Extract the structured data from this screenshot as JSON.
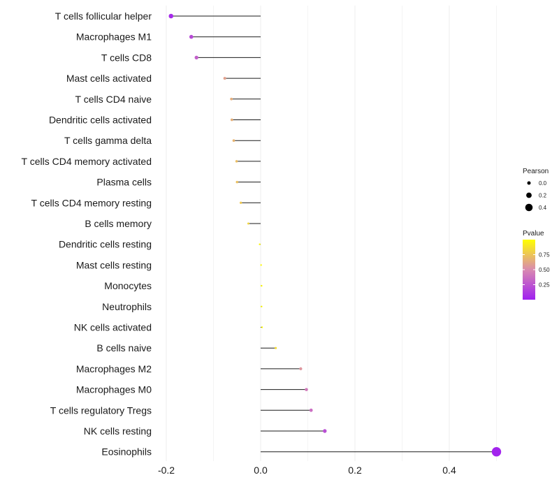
{
  "chart_data": {
    "type": "lollipop",
    "title": "",
    "xlabel": "",
    "ylabel": "",
    "xlim": [
      -0.2,
      0.5
    ],
    "x_ticks": [
      -0.2,
      0.0,
      0.2,
      0.4
    ],
    "x_tick_labels": [
      "-0.2",
      "0.0",
      "0.2",
      "0.4"
    ],
    "categories": [
      "T cells follicular helper",
      "Macrophages M1",
      "T cells CD8",
      "Mast cells activated",
      "T cells CD4 naive",
      "Dendritic cells activated",
      "T cells gamma delta",
      "T cells CD4 memory activated",
      "Plasma cells",
      "T cells CD4 memory resting",
      "B cells memory",
      "Dendritic cells resting",
      "Mast cells resting",
      "Monocytes",
      "Neutrophils",
      "NK cells activated",
      "B cells naive",
      "Macrophages M2",
      "Macrophages M0",
      "T cells regulatory  Tregs",
      "NK cells resting",
      "Eosinophils"
    ],
    "pearson": [
      -0.19,
      -0.147,
      -0.136,
      -0.076,
      -0.062,
      -0.061,
      -0.057,
      -0.051,
      -0.05,
      -0.042,
      -0.026,
      -0.002,
      0.001,
      0.002,
      0.002,
      0.003,
      0.032,
      0.085,
      0.097,
      0.107,
      0.136,
      0.5
    ],
    "pvalue": [
      0.05,
      0.2,
      0.3,
      0.6,
      0.65,
      0.66,
      0.68,
      0.72,
      0.73,
      0.77,
      0.82,
      0.97,
      0.98,
      0.98,
      0.98,
      0.98,
      0.85,
      0.55,
      0.42,
      0.37,
      0.22,
      0.02
    ],
    "size_legend": {
      "title": "Pearson",
      "values": [
        0.0,
        0.2,
        0.4
      ],
      "labels": [
        "0.0",
        "0.2",
        "0.4"
      ]
    },
    "color_legend": {
      "title": "Pvalue",
      "ticks": [
        0.25,
        0.5,
        0.75
      ],
      "labels": [
        "0.25",
        "0.50",
        "0.75"
      ],
      "range": [
        0.0,
        1.0
      ],
      "low_color": "#a020f0",
      "mid_color": "#d98ab0",
      "high_color": "#ffff00"
    },
    "grid": true
  }
}
